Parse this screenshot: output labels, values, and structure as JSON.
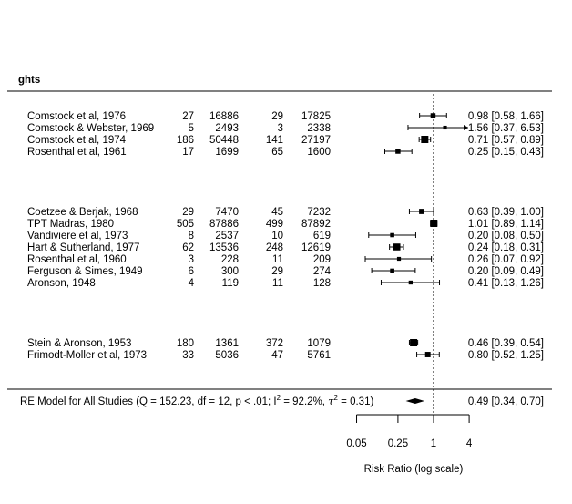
{
  "chart_data": {
    "type": "forest",
    "header_fragment": "ghts",
    "axis": {
      "label": "Risk Ratio (log scale)",
      "scale": "log",
      "ticks": [
        {
          "value": 0.05,
          "label": "0.05"
        },
        {
          "value": 0.25,
          "label": "0.25"
        },
        {
          "value": 1,
          "label": "1"
        },
        {
          "value": 4,
          "label": "4"
        }
      ],
      "reference_line": 1
    },
    "groups": [
      {
        "studies": [
          {
            "label": "Comstock et al, 1976",
            "tpos": "27",
            "tneg": "16886",
            "cpos": "29",
            "cneg": "17825",
            "rr": 0.98,
            "lo": 0.58,
            "hi": 1.66,
            "ci_text": "0.98 [0.58, 1.66]"
          },
          {
            "label": "Comstock & Webster, 1969",
            "tpos": "5",
            "tneg": "2493",
            "cpos": "3",
            "cneg": "2338",
            "rr": 1.56,
            "lo": 0.37,
            "hi": 6.53,
            "ci_text": "1.56 [0.37, 6.53]"
          },
          {
            "label": "Comstock et al, 1974",
            "tpos": "186",
            "tneg": "50448",
            "cpos": "141",
            "cneg": "27197",
            "rr": 0.71,
            "lo": 0.57,
            "hi": 0.89,
            "ci_text": "0.71 [0.57, 0.89]"
          },
          {
            "label": "Rosenthal et al, 1961",
            "tpos": "17",
            "tneg": "1699",
            "cpos": "65",
            "cneg": "1600",
            "rr": 0.25,
            "lo": 0.15,
            "hi": 0.43,
            "ci_text": "0.25 [0.15, 0.43]"
          }
        ]
      },
      {
        "studies": [
          {
            "label": "Coetzee & Berjak, 1968",
            "tpos": "29",
            "tneg": "7470",
            "cpos": "45",
            "cneg": "7232",
            "rr": 0.63,
            "lo": 0.39,
            "hi": 1.0,
            "ci_text": "0.63 [0.39, 1.00]"
          },
          {
            "label": "TPT Madras, 1980",
            "tpos": "505",
            "tneg": "87886",
            "cpos": "499",
            "cneg": "87892",
            "rr": 1.01,
            "lo": 0.89,
            "hi": 1.14,
            "ci_text": "1.01 [0.89, 1.14]"
          },
          {
            "label": "Vandiviere et al, 1973",
            "tpos": "8",
            "tneg": "2537",
            "cpos": "10",
            "cneg": "619",
            "rr": 0.2,
            "lo": 0.08,
            "hi": 0.5,
            "ci_text": "0.20 [0.08, 0.50]"
          },
          {
            "label": "Hart & Sutherland, 1977",
            "tpos": "62",
            "tneg": "13536",
            "cpos": "248",
            "cneg": "12619",
            "rr": 0.24,
            "lo": 0.18,
            "hi": 0.31,
            "ci_text": "0.24 [0.18, 0.31]"
          },
          {
            "label": "Rosenthal et al, 1960",
            "tpos": "3",
            "tneg": "228",
            "cpos": "11",
            "cneg": "209",
            "rr": 0.26,
            "lo": 0.07,
            "hi": 0.92,
            "ci_text": "0.26 [0.07, 0.92]"
          },
          {
            "label": "Ferguson & Simes, 1949",
            "tpos": "6",
            "tneg": "300",
            "cpos": "29",
            "cneg": "274",
            "rr": 0.2,
            "lo": 0.09,
            "hi": 0.49,
            "ci_text": "0.20 [0.09, 0.49]"
          },
          {
            "label": "Aronson, 1948",
            "tpos": "4",
            "tneg": "119",
            "cpos": "11",
            "cneg": "128",
            "rr": 0.41,
            "lo": 0.13,
            "hi": 1.26,
            "ci_text": "0.41 [0.13, 1.26]"
          }
        ]
      },
      {
        "studies": [
          {
            "label": "Stein & Aronson, 1953",
            "tpos": "180",
            "tneg": "1361",
            "cpos": "372",
            "cneg": "1079",
            "rr": 0.46,
            "lo": 0.39,
            "hi": 0.54,
            "ci_text": "0.46 [0.39, 0.54]"
          },
          {
            "label": "Frimodt-Moller et al, 1973",
            "tpos": "33",
            "tneg": "5036",
            "cpos": "47",
            "cneg": "5761",
            "rr": 0.8,
            "lo": 0.52,
            "hi": 1.25,
            "ci_text": "0.80 [0.52, 1.25]"
          }
        ]
      }
    ],
    "summary": {
      "label_start": "RE Model for All Studies (Q = 152.23, df = 12, p < .01; I",
      "label_mid": " = 92.2%, ",
      "label_end": " = 0.31)",
      "rr": 0.49,
      "lo": 0.34,
      "hi": 0.7,
      "ci_text": "0.49 [0.34, 0.70]"
    }
  }
}
